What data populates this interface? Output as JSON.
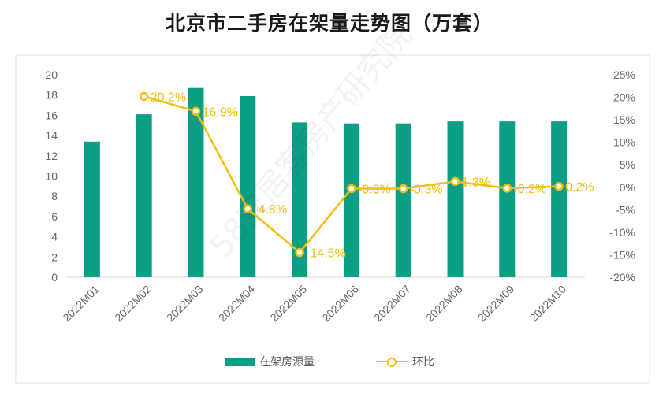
{
  "chart_data": {
    "type": "bar",
    "title": "北京市二手房在架量走势图（万套）",
    "categories": [
      "2022M01",
      "2022M02",
      "2022M03",
      "2022M04",
      "2022M05",
      "2022M06",
      "2022M07",
      "2022M08",
      "2022M09",
      "2022M10"
    ],
    "series": [
      {
        "name": "在架房源量",
        "kind": "bar",
        "axis": "left",
        "values": [
          13.4,
          16.1,
          18.7,
          17.9,
          15.3,
          15.2,
          15.2,
          15.4,
          15.4,
          15.4
        ]
      },
      {
        "name": "环比",
        "kind": "line",
        "axis": "right",
        "values": [
          null,
          20.2,
          16.9,
          -4.8,
          -14.5,
          -0.3,
          -0.3,
          1.3,
          -0.2,
          0.2
        ],
        "labels": [
          "",
          "20.2%",
          "16.9%",
          "-4.8%",
          "-14.5%",
          "-0.3%",
          "-0.3%",
          "1.3%",
          "-0.2%",
          "0.2%"
        ]
      }
    ],
    "y_left": {
      "min": 0,
      "max": 20,
      "step": 2,
      "ticks": [
        "0",
        "2",
        "4",
        "6",
        "8",
        "10",
        "12",
        "14",
        "16",
        "18",
        "20"
      ]
    },
    "y_right": {
      "min": -20,
      "max": 25,
      "step": 5,
      "ticks": [
        "-20%",
        "-15%",
        "-10%",
        "-5%",
        "0%",
        "5%",
        "10%",
        "15%",
        "20%",
        "25%"
      ]
    },
    "grid": false,
    "legend": "bottom",
    "colors": {
      "bar": "#0c9f86",
      "line": "#f4bd12",
      "axis": "#d9d9d9",
      "tick_text": "#666666"
    }
  },
  "watermark": "58安居客房产研究院"
}
